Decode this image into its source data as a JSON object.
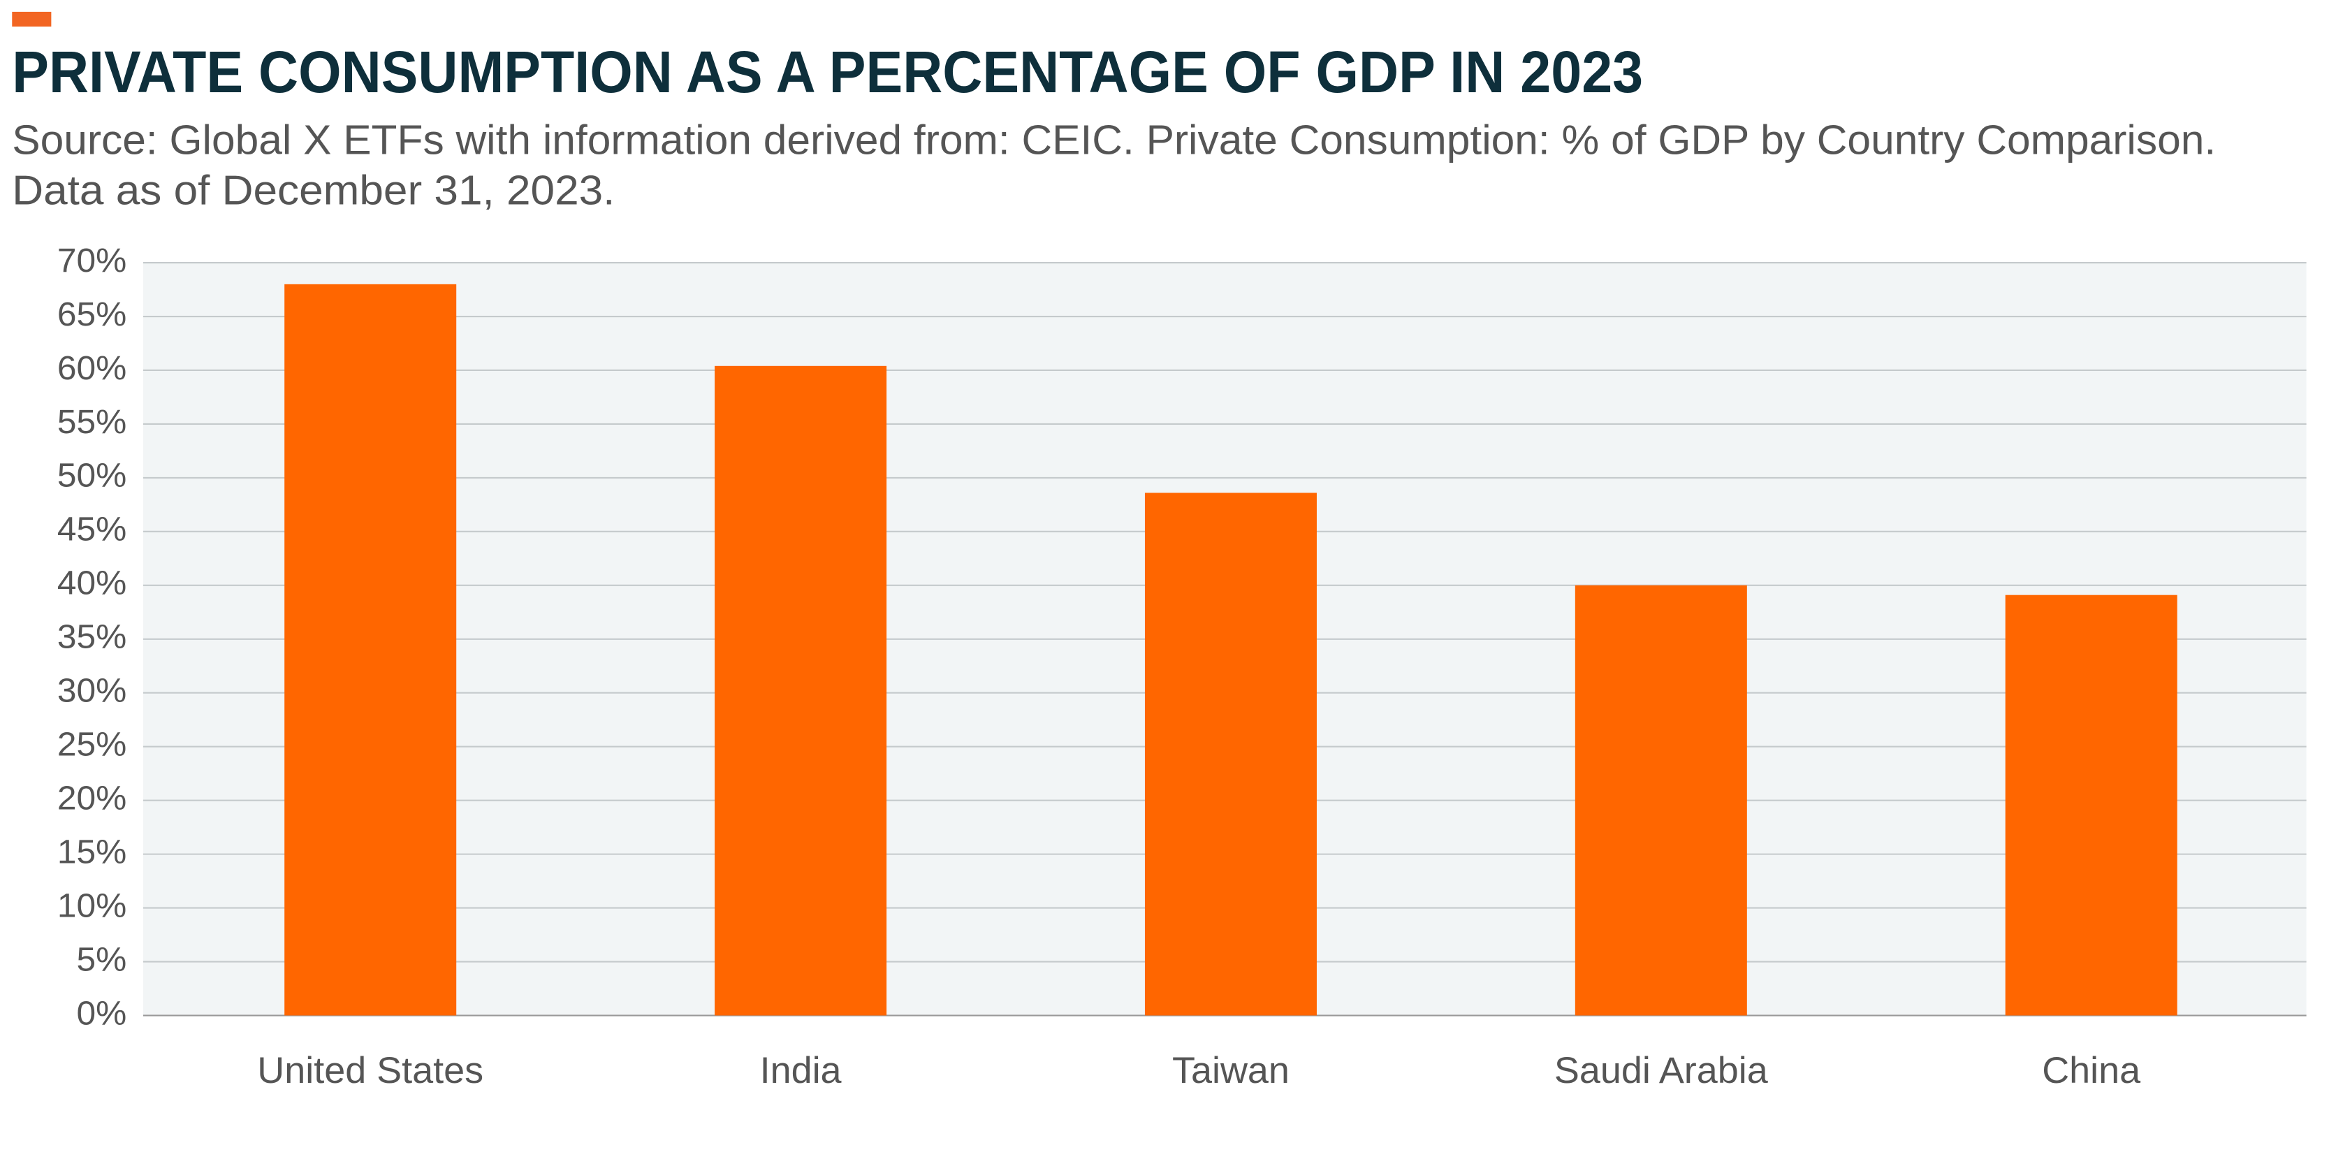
{
  "chart_data": {
    "type": "bar",
    "title": "PRIVATE CONSUMPTION AS A PERCENTAGE OF GDP IN 2023",
    "subtitle": [
      "Source: Global X ETFs with information derived from: CEIC. Private Consumption: % of GDP by Country Comparison.",
      "Data as of December 31, 2023."
    ],
    "categories": [
      "United States",
      "India",
      "Taiwan",
      "Saudi Arabia",
      "China"
    ],
    "values": [
      68,
      60.4,
      48.6,
      40,
      39.1
    ],
    "color": "#ff6600",
    "ylim": [
      0,
      70
    ],
    "yticks": [
      {
        "value": 0,
        "label": "0%"
      },
      {
        "value": 5,
        "label": "5%"
      },
      {
        "value": 10,
        "label": "10%"
      },
      {
        "value": 15,
        "label": "15%"
      },
      {
        "value": 20,
        "label": "20%"
      },
      {
        "value": 25,
        "label": "25%"
      },
      {
        "value": 30,
        "label": "30%"
      },
      {
        "value": 35,
        "label": "35%"
      },
      {
        "value": 40,
        "label": "40%"
      },
      {
        "value": 45,
        "label": "45%"
      },
      {
        "value": 50,
        "label": "50%"
      },
      {
        "value": 55,
        "label": "55%"
      },
      {
        "value": 60,
        "label": "60%"
      },
      {
        "value": 65,
        "label": "65%"
      },
      {
        "value": 70,
        "label": "70%"
      }
    ],
    "grid": true
  }
}
